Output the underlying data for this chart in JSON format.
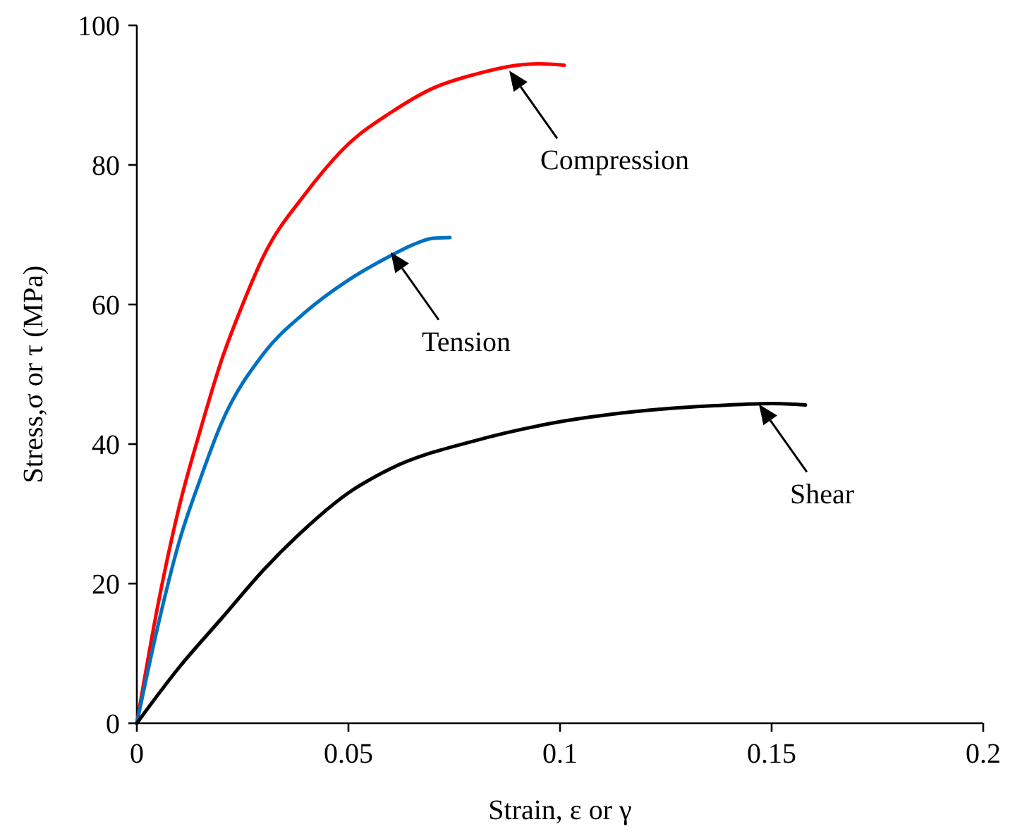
{
  "chart_data": {
    "type": "line",
    "xlabel": "Strain, ε or γ",
    "ylabel": "Stress,σ or τ (MPa)",
    "xlim": [
      0,
      0.2
    ],
    "xticks": [
      0,
      0.05,
      0.1,
      0.15,
      0.2
    ],
    "ylim": [
      0,
      100
    ],
    "yticks": [
      0,
      20,
      40,
      60,
      80,
      100
    ],
    "grid": false,
    "marker": "none",
    "line_style": "solid",
    "series": [
      {
        "color": "#ff0000",
        "x": [
          0,
          0.005,
          0.01,
          0.015,
          0.02,
          0.025,
          0.03,
          0.04,
          0.05,
          0.06,
          0.07,
          0.08,
          0.09,
          0.095,
          0.101
        ],
        "values": [
          0,
          17,
          31,
          42,
          52,
          60,
          67,
          76,
          83,
          87.5,
          91,
          93,
          94.3,
          94.5,
          94.3
        ]
      },
      {
        "color": "#0070c0",
        "x": [
          0,
          0.005,
          0.01,
          0.015,
          0.02,
          0.03,
          0.04,
          0.05,
          0.06,
          0.065,
          0.07,
          0.074
        ],
        "values": [
          0,
          14,
          26,
          35,
          43,
          53,
          59,
          63.5,
          67,
          68.5,
          69.5,
          69.6
        ]
      },
      {
        "color": "#000000",
        "x": [
          0,
          0.01,
          0.02,
          0.03,
          0.04,
          0.05,
          0.06,
          0.08,
          0.1,
          0.12,
          0.14,
          0.15,
          0.158
        ],
        "values": [
          0,
          8,
          15,
          22,
          28,
          33,
          36.5,
          40.5,
          43.2,
          44.8,
          45.6,
          45.8,
          45.6
        ]
      }
    ],
    "annotations": [
      {
        "text": "Compression",
        "x": 0.088,
        "y": 93.5
      },
      {
        "text": "Tension",
        "x": 0.06,
        "y": 67.5
      },
      {
        "text": "Shear",
        "x": 0.147,
        "y": 45.7
      }
    ]
  }
}
